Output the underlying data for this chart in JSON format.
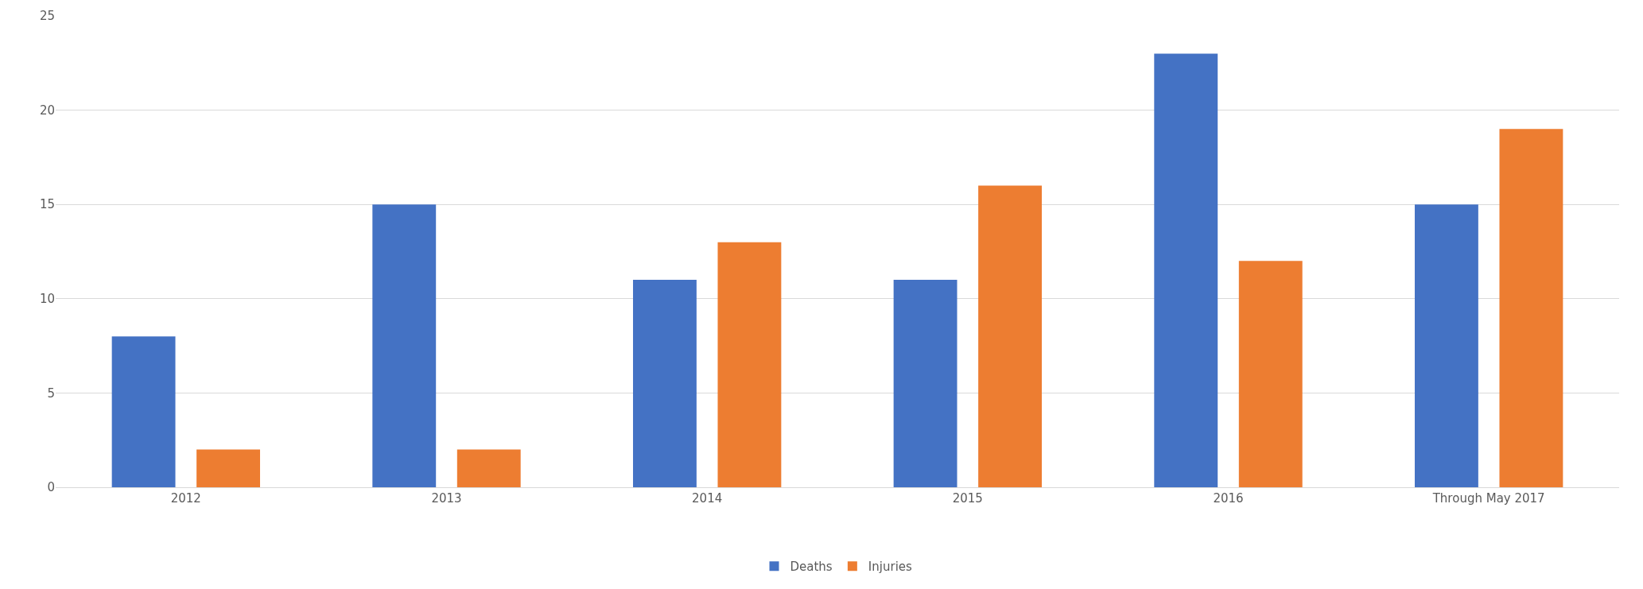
{
  "chart_data": {
    "type": "bar",
    "categories": [
      "2012",
      "2013",
      "2014",
      "2015",
      "2016",
      "Through May 2017"
    ],
    "series": [
      {
        "name": "Deaths",
        "color": "#4472c4",
        "values": [
          8,
          15,
          11,
          11,
          23,
          15
        ]
      },
      {
        "name": "Injuries",
        "color": "#ed7d31",
        "values": [
          2,
          2,
          13,
          16,
          12,
          19
        ]
      }
    ],
    "ylim": [
      0,
      25
    ],
    "yticks": [
      0,
      5,
      10,
      15,
      20,
      25
    ],
    "grid": "y",
    "legend": "bottom"
  }
}
